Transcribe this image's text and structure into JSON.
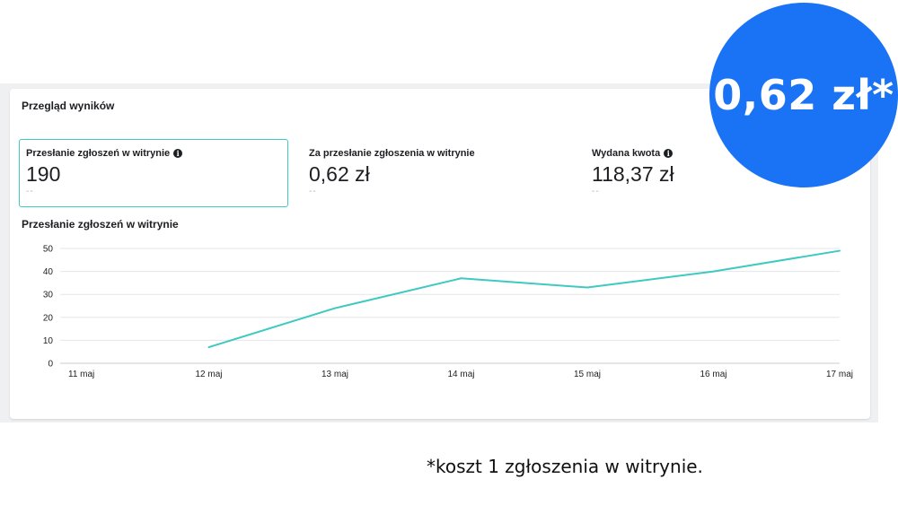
{
  "overview": {
    "title": "Przegląd wyników",
    "metrics": [
      {
        "label": "Przesłanie zgłoszeń w witrynie",
        "value": "190",
        "delta": "--",
        "has_info": true,
        "selected": true
      },
      {
        "label": "Za przesłanie zgłoszenia w witrynie",
        "value": "0,62 zł",
        "delta": "--",
        "has_info": false,
        "selected": false
      },
      {
        "label": "Wydana kwota",
        "value": "118,37 zł",
        "delta": "--",
        "has_info": true,
        "selected": false
      }
    ]
  },
  "chart_data": {
    "type": "line",
    "title": "Przesłanie zgłoszeń w witrynie",
    "categories": [
      "11 maj",
      "12 maj",
      "13 maj",
      "14 maj",
      "15 maj",
      "16 maj",
      "17 maj"
    ],
    "series": [
      {
        "values": [
          null,
          7,
          24,
          37,
          33,
          40,
          49
        ],
        "color": "#3ec9c1"
      }
    ],
    "yticks": [
      0,
      10,
      20,
      30,
      40,
      50
    ],
    "ylim": [
      0,
      50
    ],
    "grid": true,
    "xlabel": "",
    "ylabel": ""
  },
  "badge": {
    "text": "0,62 zł*",
    "color": "#1a73f5"
  },
  "footnote": "*koszt 1 zgłoszenia w witrynie."
}
